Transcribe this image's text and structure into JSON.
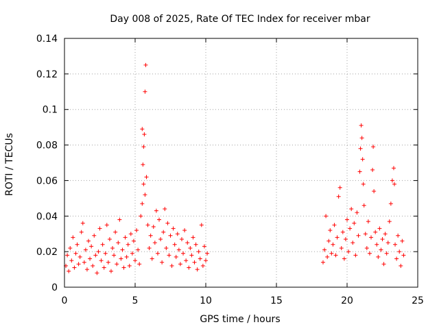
{
  "chart_data": {
    "type": "scatter",
    "title": "Day 008 of 2025, Rate Of TEC Index for receiver mbar",
    "xlabel": "GPS time / hours",
    "ylabel": "ROTI / TECUs",
    "xlim": [
      0,
      25
    ],
    "ylim": [
      0,
      0.14
    ],
    "xticks": [
      0,
      5,
      10,
      15,
      20,
      25
    ],
    "yticks": [
      0,
      0.02,
      0.04,
      0.06,
      0.08,
      0.1,
      0.12,
      0.14
    ],
    "xtick_labels": [
      "0",
      "5",
      "10",
      "15",
      "20",
      "25"
    ],
    "ytick_labels": [
      "0",
      "0.02",
      "0.04",
      "0.06",
      "0.08",
      "0.1",
      "0.12",
      "0.14"
    ],
    "grid": true,
    "marker": "plus",
    "color": "#ff0000",
    "series": [
      {
        "points": [
          [
            0.1,
            0.012
          ],
          [
            0.2,
            0.018
          ],
          [
            0.3,
            0.009
          ],
          [
            0.4,
            0.022
          ],
          [
            0.5,
            0.015
          ],
          [
            0.6,
            0.028
          ],
          [
            0.7,
            0.011
          ],
          [
            0.8,
            0.019
          ],
          [
            0.9,
            0.024
          ],
          [
            1.0,
            0.013
          ],
          [
            1.1,
            0.017
          ],
          [
            1.2,
            0.031
          ],
          [
            1.3,
            0.036
          ],
          [
            1.4,
            0.014
          ],
          [
            1.5,
            0.021
          ],
          [
            1.6,
            0.01
          ],
          [
            1.7,
            0.026
          ],
          [
            1.8,
            0.016
          ],
          [
            1.9,
            0.023
          ],
          [
            2.0,
            0.012
          ],
          [
            2.1,
            0.029
          ],
          [
            2.2,
            0.018
          ],
          [
            2.3,
            0.008
          ],
          [
            2.4,
            0.02
          ],
          [
            2.5,
            0.033
          ],
          [
            2.6,
            0.015
          ],
          [
            2.7,
            0.024
          ],
          [
            2.8,
            0.011
          ],
          [
            2.9,
            0.019
          ],
          [
            3.0,
            0.035
          ],
          [
            3.1,
            0.014
          ],
          [
            3.2,
            0.027
          ],
          [
            3.3,
            0.009
          ],
          [
            3.4,
            0.022
          ],
          [
            3.5,
            0.018
          ],
          [
            3.6,
            0.031
          ],
          [
            3.7,
            0.013
          ],
          [
            3.8,
            0.025
          ],
          [
            3.9,
            0.038
          ],
          [
            4.0,
            0.016
          ],
          [
            4.1,
            0.021
          ],
          [
            4.2,
            0.011
          ],
          [
            4.3,
            0.028
          ],
          [
            4.4,
            0.017
          ],
          [
            4.5,
            0.024
          ],
          [
            4.6,
            0.012
          ],
          [
            4.7,
            0.03
          ],
          [
            4.8,
            0.019
          ],
          [
            4.9,
            0.026
          ],
          [
            5.0,
            0.015
          ],
          [
            5.1,
            0.032
          ],
          [
            5.2,
            0.021
          ],
          [
            5.3,
            0.013
          ],
          [
            5.4,
            0.04
          ],
          [
            5.5,
            0.047
          ],
          [
            5.6,
            0.058
          ],
          [
            5.55,
            0.069
          ],
          [
            5.6,
            0.079
          ],
          [
            5.5,
            0.089
          ],
          [
            5.65,
            0.086
          ],
          [
            5.7,
            0.11
          ],
          [
            5.75,
            0.125
          ],
          [
            5.8,
            0.062
          ],
          [
            5.7,
            0.052
          ],
          [
            5.9,
            0.035
          ],
          [
            6.0,
            0.022
          ],
          [
            6.1,
            0.029
          ],
          [
            6.2,
            0.016
          ],
          [
            6.3,
            0.034
          ],
          [
            6.4,
            0.025
          ],
          [
            6.5,
            0.043
          ],
          [
            6.6,
            0.019
          ],
          [
            6.7,
            0.038
          ],
          [
            6.8,
            0.027
          ],
          [
            6.9,
            0.014
          ],
          [
            7.0,
            0.031
          ],
          [
            7.1,
            0.044
          ],
          [
            7.2,
            0.022
          ],
          [
            7.3,
            0.036
          ],
          [
            7.4,
            0.018
          ],
          [
            7.5,
            0.029
          ],
          [
            7.6,
            0.012
          ],
          [
            7.7,
            0.033
          ],
          [
            7.8,
            0.024
          ],
          [
            7.9,
            0.017
          ],
          [
            8.0,
            0.03
          ],
          [
            8.1,
            0.021
          ],
          [
            8.2,
            0.013
          ],
          [
            8.3,
            0.027
          ],
          [
            8.4,
            0.019
          ],
          [
            8.5,
            0.032
          ],
          [
            8.6,
            0.015
          ],
          [
            8.7,
            0.025
          ],
          [
            8.8,
            0.011
          ],
          [
            8.9,
            0.022
          ],
          [
            9.0,
            0.018
          ],
          [
            9.1,
            0.028
          ],
          [
            9.2,
            0.014
          ],
          [
            9.3,
            0.024
          ],
          [
            9.4,
            0.01
          ],
          [
            9.5,
            0.02
          ],
          [
            9.6,
            0.016
          ],
          [
            9.7,
            0.035
          ],
          [
            9.8,
            0.012
          ],
          [
            9.9,
            0.023
          ],
          [
            10.0,
            0.015
          ],
          [
            10.1,
            0.019
          ],
          [
            18.3,
            0.014
          ],
          [
            18.4,
            0.021
          ],
          [
            18.5,
            0.04
          ],
          [
            18.6,
            0.017
          ],
          [
            18.7,
            0.026
          ],
          [
            18.8,
            0.032
          ],
          [
            18.9,
            0.019
          ],
          [
            19.0,
            0.024
          ],
          [
            19.1,
            0.035
          ],
          [
            19.2,
            0.018
          ],
          [
            19.3,
            0.028
          ],
          [
            19.4,
            0.051
          ],
          [
            19.5,
            0.056
          ],
          [
            19.6,
            0.022
          ],
          [
            19.7,
            0.031
          ],
          [
            19.8,
            0.016
          ],
          [
            19.9,
            0.027
          ],
          [
            20.0,
            0.038
          ],
          [
            20.1,
            0.02
          ],
          [
            20.2,
            0.033
          ],
          [
            20.3,
            0.044
          ],
          [
            20.4,
            0.025
          ],
          [
            20.5,
            0.036
          ],
          [
            20.6,
            0.018
          ],
          [
            20.7,
            0.042
          ],
          [
            20.8,
            0.029
          ],
          [
            20.9,
            0.065
          ],
          [
            20.95,
            0.078
          ],
          [
            21.0,
            0.091
          ],
          [
            21.05,
            0.084
          ],
          [
            21.1,
            0.072
          ],
          [
            21.15,
            0.058
          ],
          [
            21.2,
            0.046
          ],
          [
            21.3,
            0.03
          ],
          [
            21.4,
            0.022
          ],
          [
            21.5,
            0.037
          ],
          [
            21.6,
            0.019
          ],
          [
            21.7,
            0.028
          ],
          [
            21.8,
            0.066
          ],
          [
            21.85,
            0.079
          ],
          [
            21.9,
            0.054
          ],
          [
            22.0,
            0.031
          ],
          [
            22.1,
            0.024
          ],
          [
            22.2,
            0.017
          ],
          [
            22.3,
            0.033
          ],
          [
            22.4,
            0.021
          ],
          [
            22.5,
            0.027
          ],
          [
            22.6,
            0.013
          ],
          [
            22.7,
            0.03
          ],
          [
            22.8,
            0.019
          ],
          [
            22.9,
            0.025
          ],
          [
            23.0,
            0.037
          ],
          [
            23.1,
            0.047
          ],
          [
            23.2,
            0.06
          ],
          [
            23.3,
            0.067
          ],
          [
            23.35,
            0.058
          ],
          [
            23.4,
            0.024
          ],
          [
            23.5,
            0.016
          ],
          [
            23.6,
            0.029
          ],
          [
            23.7,
            0.02
          ],
          [
            23.8,
            0.012
          ],
          [
            23.9,
            0.026
          ],
          [
            24.0,
            0.018
          ]
        ]
      }
    ]
  }
}
